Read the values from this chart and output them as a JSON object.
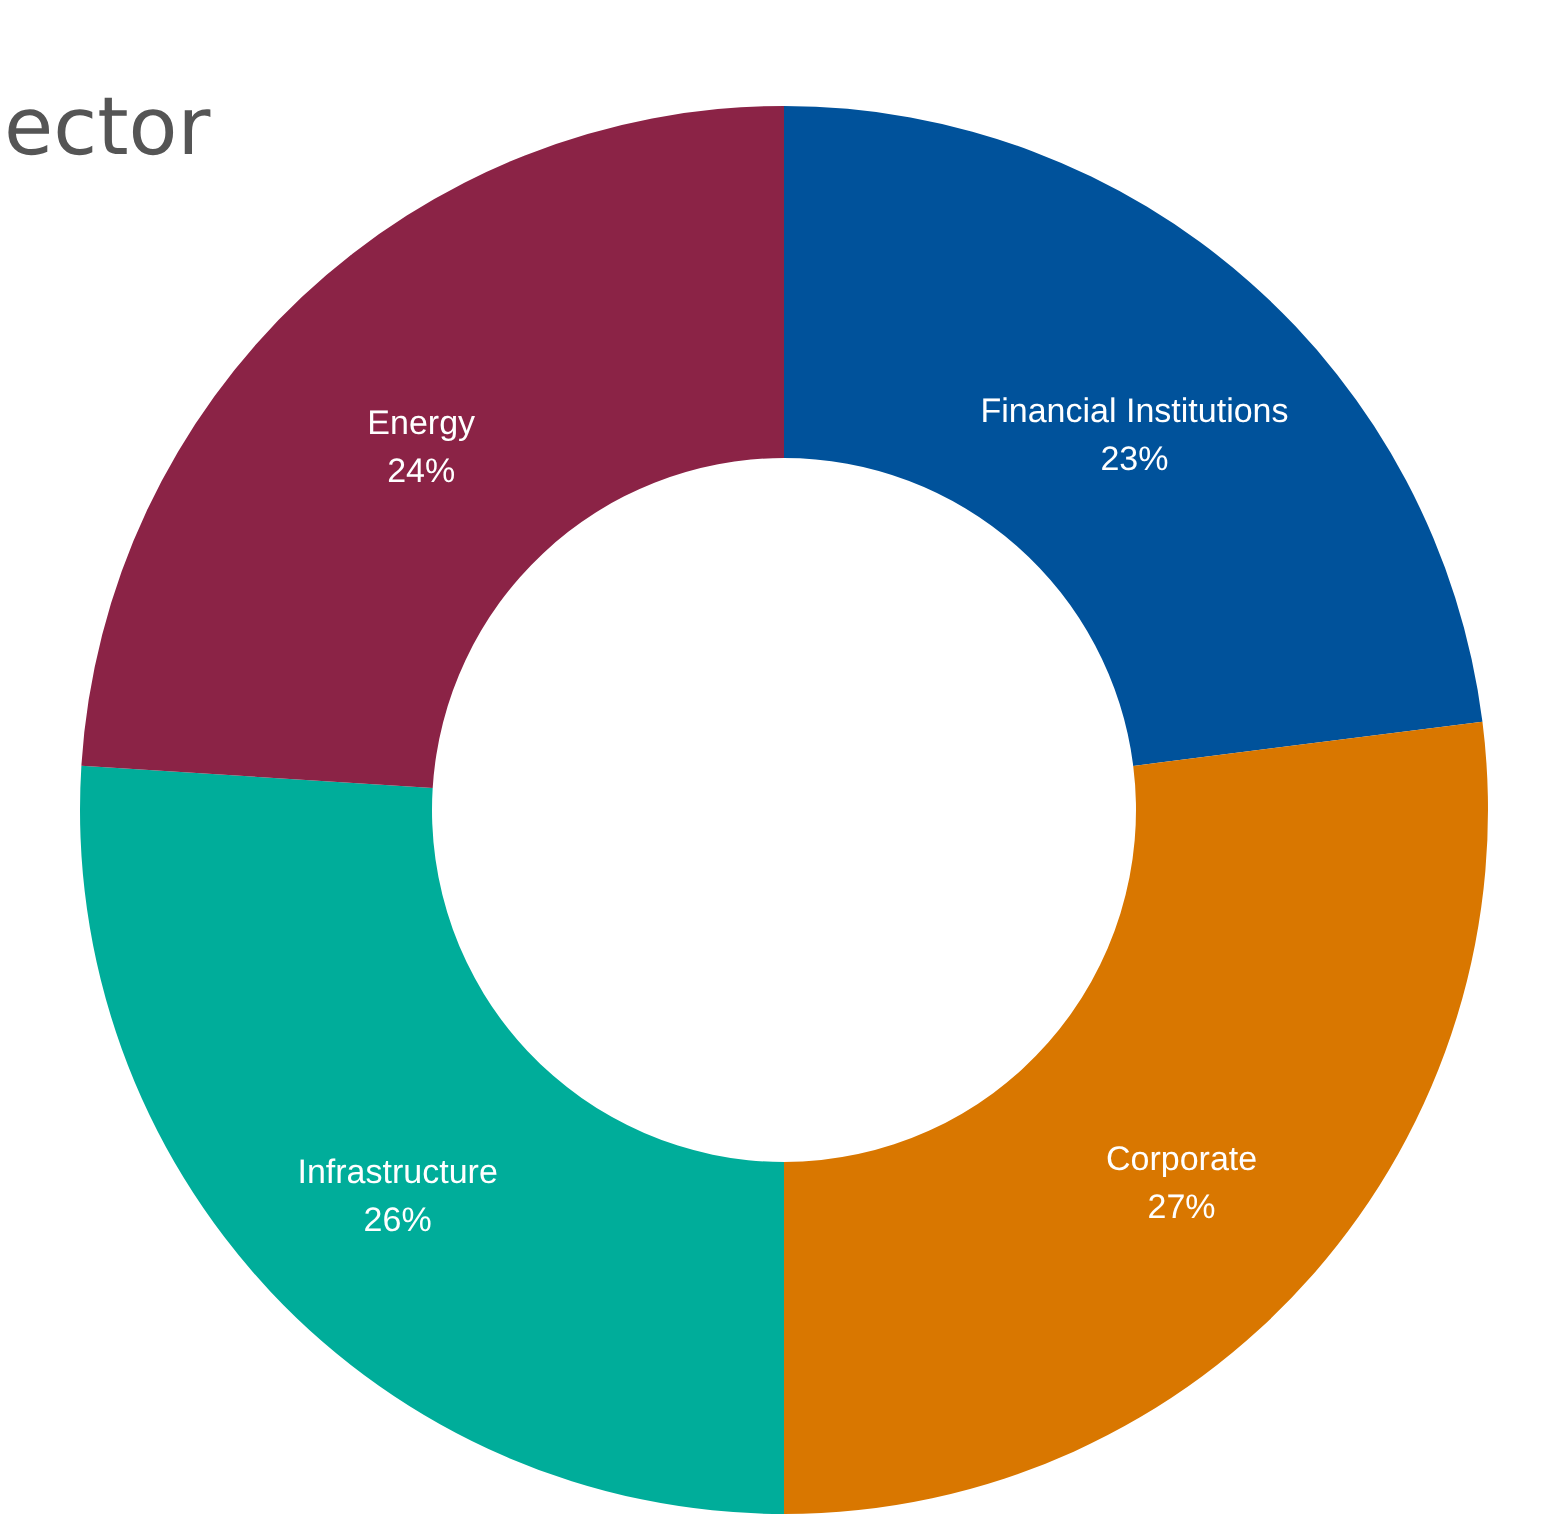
{
  "chart_data": {
    "type": "donut",
    "title": "ector",
    "categories": [
      "Financial Institutions",
      "Corporate",
      "Infrastructure",
      "Energy"
    ],
    "values": [
      23,
      27,
      26,
      24
    ],
    "colors": [
      "#00529b",
      "#d97700",
      "#00ad9a",
      "#8b2346"
    ],
    "value_labels": [
      "23%",
      "27%",
      "26%",
      "24%"
    ],
    "legend": false
  }
}
